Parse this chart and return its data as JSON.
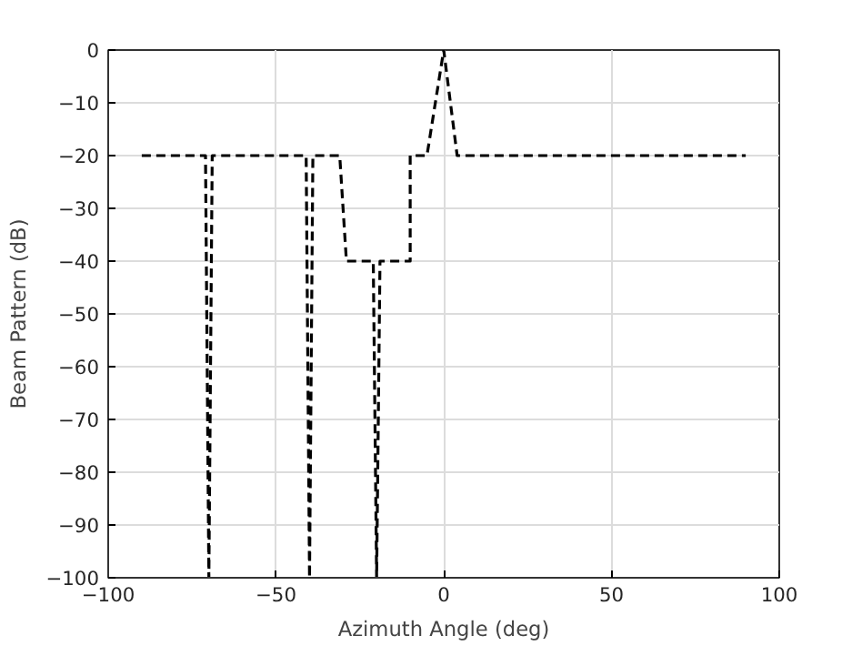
{
  "chart_data": {
    "type": "line",
    "xlabel": "Azimuth Angle (deg)",
    "ylabel": "Beam Pattern (dB)",
    "x": [
      -90,
      -71,
      -70,
      -69,
      -41,
      -40,
      -39,
      -31,
      -29,
      -21,
      -20,
      -19,
      -10,
      -10,
      -5,
      0,
      4,
      90
    ],
    "series": [
      {
        "color": "#000000",
        "values": [
          -20,
          -20,
          -100,
          -20,
          -20,
          -100,
          -20,
          -20,
          -40,
          -40,
          -100,
          -40,
          -40,
          -20,
          -20,
          0,
          -20,
          -20
        ]
      }
    ],
    "xlim": [
      -100,
      100
    ],
    "ylim": [
      -100,
      0
    ],
    "xticks": [
      -100,
      -50,
      0,
      50,
      100
    ],
    "yticks": [
      0,
      -10,
      -20,
      -30,
      -40,
      -50,
      -60,
      -70,
      -80,
      -90,
      -100
    ],
    "grid": true,
    "line_style": "dashed",
    "marker": "none"
  }
}
